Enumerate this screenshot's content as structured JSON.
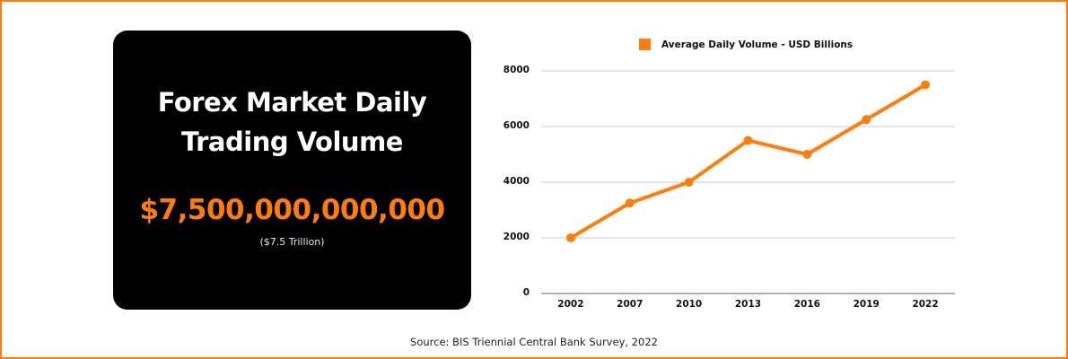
{
  "card": {
    "title_line1": "Forex Market Daily",
    "title_line2": "Trading Volume",
    "value": "$7,500,000,000,000",
    "value_sub": "($7.5 Trillion)"
  },
  "legend": {
    "label": "Average Daily Volume - USD Billions",
    "color": "#ff7d08"
  },
  "source": "Source: BIS Triennial Central Bank Survey, 2022",
  "colors": {
    "accent": "#ff7d08",
    "card_bg": "#000000",
    "grid": "#cccccc"
  },
  "chart_data": {
    "type": "line",
    "title": "",
    "categories": [
      "2002",
      "2007",
      "2010",
      "2013",
      "2016",
      "2019",
      "2022"
    ],
    "series": [
      {
        "name": "Average Daily Volume - USD Billions",
        "values": [
          2000,
          3250,
          4000,
          5500,
          5000,
          6250,
          7500
        ],
        "color": "#ff7d08"
      }
    ],
    "xlabel": "",
    "ylabel": "",
    "ylim": [
      0,
      8000
    ],
    "yticks": [
      "0",
      "2000",
      "4000",
      "6000",
      "8000"
    ],
    "grid": true,
    "legend_position": "top"
  }
}
